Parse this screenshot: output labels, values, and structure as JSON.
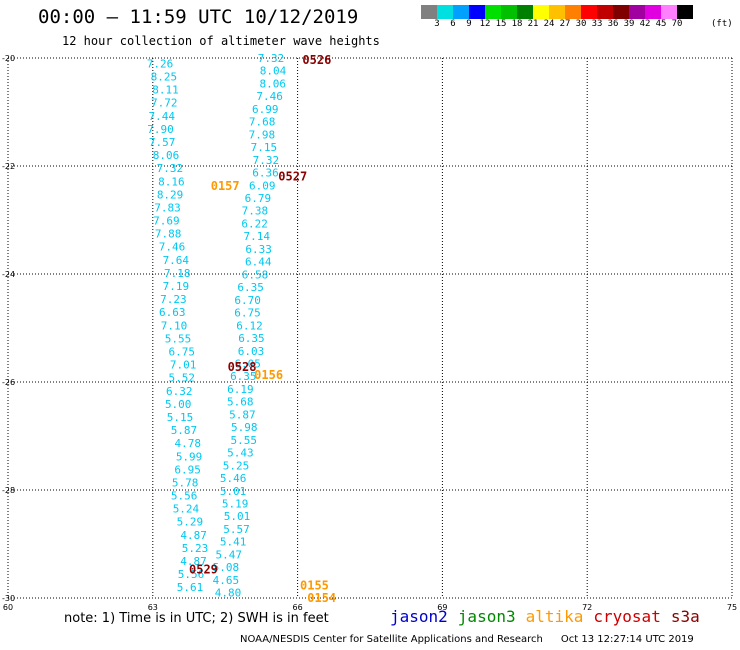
{
  "header": {
    "title": "00:00 – 11:59 UTC 10/12/2019",
    "subtitle": "12 hour collection of altimeter wave heights"
  },
  "legend": {
    "colors": [
      "#808080",
      "#00e0e0",
      "#00a0ff",
      "#0000ff",
      "#00e000",
      "#00c000",
      "#008000",
      "#ffff00",
      "#ffc000",
      "#ff8000",
      "#ff0000",
      "#c00000",
      "#800000",
      "#a000a0",
      "#e000e0",
      "#ff80ff",
      "#000000"
    ],
    "labels": [
      "3",
      "6",
      "9",
      "12",
      "15",
      "18",
      "21",
      "24",
      "27",
      "30",
      "33",
      "36",
      "39",
      "42",
      "45",
      "70"
    ],
    "unit": "(ft)"
  },
  "note": "note:  1) Time is in UTC; 2) SWH is in feet",
  "satellites": [
    {
      "name": "jason2",
      "color": "#0000cc"
    },
    {
      "name": "jason3",
      "color": "#008800"
    },
    {
      "name": "altika",
      "color": "#ff9900"
    },
    {
      "name": "cryosat",
      "color": "#cc0000"
    },
    {
      "name": "s3a",
      "color": "#8b0000"
    }
  ],
  "footer": {
    "credit": "NOAA/NESDIS Center for Satellite Applications and Research",
    "timestamp": "Oct 13 12:27:14 UTC 2019"
  },
  "chart_data": {
    "type": "scatter",
    "xlim": [
      60,
      75
    ],
    "ylim": [
      -30,
      -20
    ],
    "x_ticks": [
      60,
      63,
      66,
      69,
      72,
      75
    ],
    "y_ticks": [
      -20,
      -22,
      -24,
      -26,
      -28,
      -30
    ],
    "grid": true,
    "track_color": "#00c8f0",
    "tracks": [
      {
        "name": "west",
        "lon_start": 63.15,
        "lon_end": 63.85,
        "lat_start": -20.1,
        "lat_end": -29.8,
        "values": [
          "7.26",
          "8.25",
          "8.11",
          "7.72",
          "7.44",
          "7.90",
          "7.57",
          "8.06",
          "7.32",
          "8.16",
          "8.29",
          "7.83",
          "7.69",
          "7.88",
          "7.46",
          "7.64",
          "7.18",
          "7.19",
          "7.23",
          "6.63",
          "7.10",
          "5.55",
          "6.75",
          "7.01",
          "5.52",
          "6.32",
          "5.00",
          "5.15",
          "5.87",
          "4.78",
          "5.99",
          "6.95",
          "5.78",
          "5.56",
          "5.24",
          "5.29",
          "4.87",
          "5.23",
          "4.87",
          "5.56",
          "5.61"
        ]
      },
      {
        "name": "east",
        "lon_start": 65.45,
        "lon_end": 64.55,
        "lat_start": -20.0,
        "lat_end": -29.9,
        "values": [
          "7.32",
          "8.04",
          "8.06",
          "7.46",
          "6.99",
          "7.68",
          "7.98",
          "7.15",
          "7.32",
          "6.36",
          "6.09",
          "6.79",
          "7.38",
          "6.22",
          "7.14",
          "6.33",
          "6.44",
          "6.58",
          "6.35",
          "6.70",
          "6.75",
          "6.12",
          "6.35",
          "6.03",
          "6.05",
          "6.35",
          "6.19",
          "5.68",
          "5.87",
          "5.98",
          "5.55",
          "5.43",
          "5.25",
          "5.46",
          "5.01",
          "5.19",
          "5.01",
          "5.57",
          "5.41",
          "5.47",
          "5.08",
          "4.65",
          "4.80"
        ]
      }
    ],
    "passes": [
      {
        "label": "0526",
        "lon": 66.1,
        "lat": -20.02,
        "color": "#8b0000"
      },
      {
        "label": "0527",
        "lon": 65.6,
        "lat": -22.18,
        "color": "#8b0000"
      },
      {
        "label": "0157",
        "lon": 64.2,
        "lat": -22.35,
        "color": "#ff9900"
      },
      {
        "label": "0528",
        "lon": 64.55,
        "lat": -25.7,
        "color": "#8b0000"
      },
      {
        "label": "0156",
        "lon": 65.1,
        "lat": -25.85,
        "color": "#ff9900"
      },
      {
        "label": "0529",
        "lon": 63.75,
        "lat": -29.45,
        "color": "#8b0000"
      },
      {
        "label": "0155",
        "lon": 66.05,
        "lat": -29.75,
        "color": "#ff9900"
      },
      {
        "label": "0154",
        "lon": 66.2,
        "lat": -29.98,
        "color": "#ff9900"
      }
    ]
  }
}
